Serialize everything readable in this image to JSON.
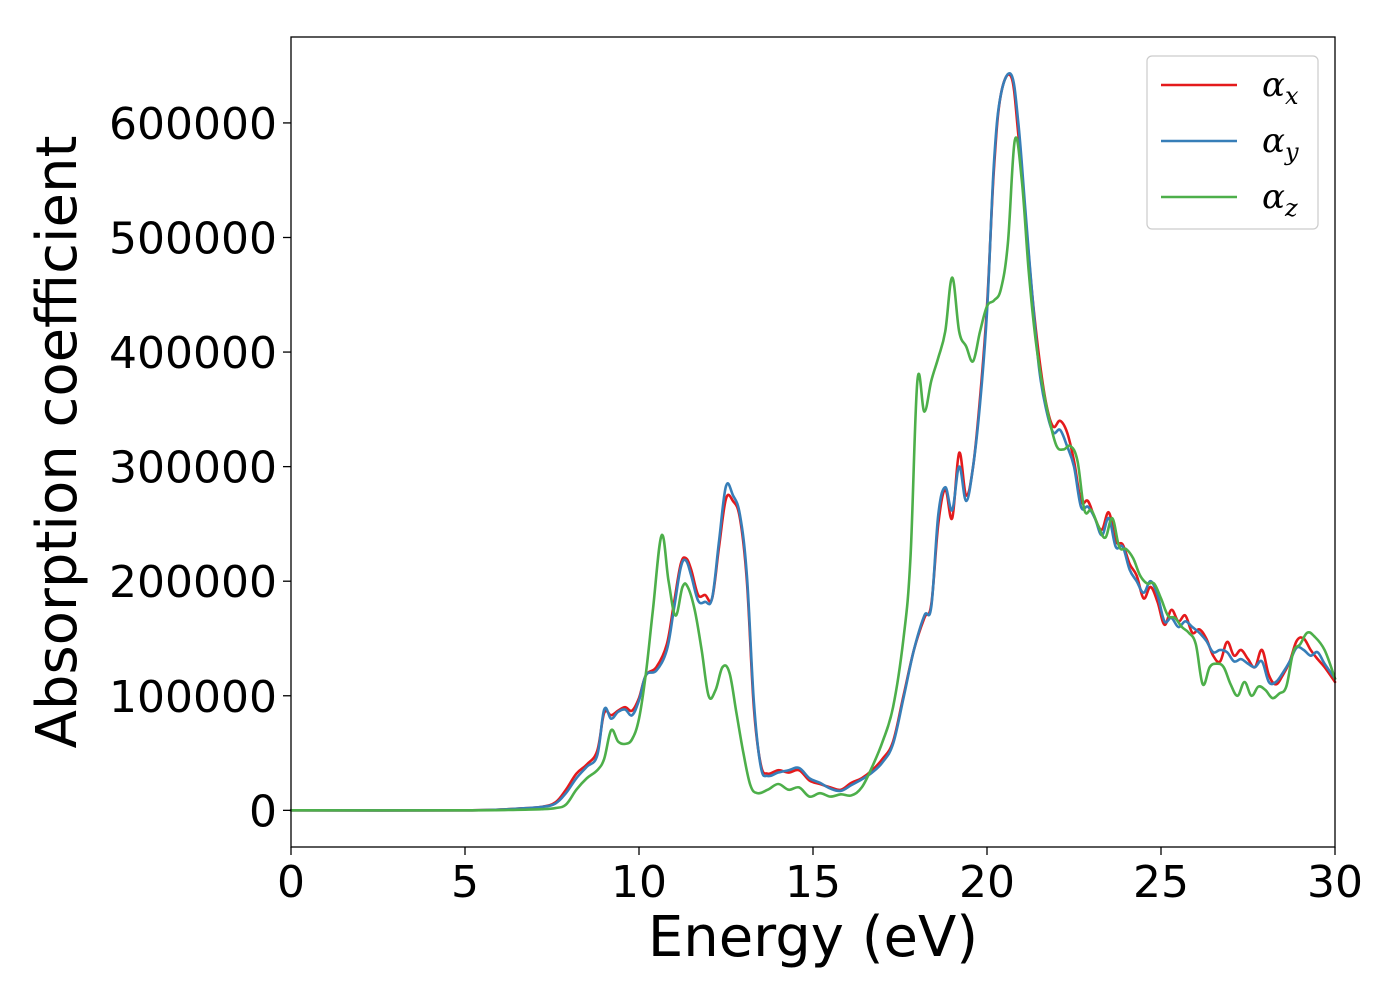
{
  "chart_data": {
    "type": "line",
    "title": "",
    "xlabel": "Energy (eV)",
    "ylabel": "Absorption coefficient",
    "xlim": [
      0,
      30
    ],
    "ylim": [
      -32000,
      675000
    ],
    "xticks": [
      0,
      5,
      10,
      15,
      20,
      25,
      30
    ],
    "yticks": [
      0,
      100000,
      200000,
      300000,
      400000,
      500000,
      600000
    ],
    "grid": false,
    "legend": {
      "placement": "top-right"
    },
    "series": [
      {
        "name": "α",
        "subscript": "x",
        "color": "#e41a1c",
        "x": [
          0,
          5,
          6.5,
          7.2,
          7.6,
          7.9,
          8.2,
          8.5,
          8.8,
          9.0,
          9.2,
          9.4,
          9.6,
          9.8,
          10.0,
          10.2,
          10.5,
          10.8,
          11.0,
          11.2,
          11.35,
          11.5,
          11.7,
          11.9,
          12.1,
          12.3,
          12.5,
          12.7,
          12.9,
          13.1,
          13.3,
          13.5,
          13.7,
          14.0,
          14.3,
          14.6,
          14.9,
          15.2,
          15.5,
          15.8,
          16.1,
          16.4,
          16.7,
          17.0,
          17.3,
          17.6,
          17.9,
          18.2,
          18.4,
          18.6,
          18.8,
          19.0,
          19.2,
          19.4,
          19.6,
          19.8,
          20.0,
          20.2,
          20.4,
          20.7,
          20.9,
          21.1,
          21.3,
          21.5,
          21.7,
          21.9,
          22.1,
          22.3,
          22.5,
          22.7,
          22.9,
          23.1,
          23.3,
          23.5,
          23.7,
          23.9,
          24.1,
          24.3,
          24.5,
          24.7,
          24.9,
          25.1,
          25.3,
          25.5,
          25.7,
          25.9,
          26.1,
          26.3,
          26.5,
          26.7,
          26.9,
          27.1,
          27.3,
          27.5,
          27.7,
          27.9,
          28.1,
          28.3,
          28.5,
          28.7,
          28.9,
          29.1,
          29.3,
          29.5,
          29.7,
          30.0
        ],
        "y": [
          0,
          0,
          1500,
          3000,
          7000,
          18000,
          32000,
          40000,
          52000,
          85000,
          83000,
          87000,
          90000,
          87000,
          98000,
          118000,
          125000,
          145000,
          180000,
          215000,
          220000,
          210000,
          188000,
          188000,
          185000,
          230000,
          272000,
          270000,
          255000,
          200000,
          90000,
          40000,
          32000,
          35000,
          33000,
          35000,
          26000,
          23000,
          20000,
          18000,
          24000,
          28000,
          35000,
          45000,
          60000,
          100000,
          140000,
          168000,
          180000,
          250000,
          280000,
          255000,
          312000,
          275000,
          300000,
          360000,
          440000,
          560000,
          625000,
          640000,
          590000,
          520000,
          450000,
          395000,
          355000,
          335000,
          340000,
          330000,
          305000,
          270000,
          270000,
          255000,
          245000,
          260000,
          235000,
          232000,
          215000,
          205000,
          185000,
          195000,
          182000,
          162000,
          175000,
          165000,
          170000,
          155000,
          158000,
          150000,
          135000,
          130000,
          147000,
          135000,
          140000,
          132000,
          125000,
          140000,
          118000,
          110000,
          118000,
          130000,
          148000,
          150000,
          140000,
          132000,
          125000,
          112000
        ]
      },
      {
        "name": "α",
        "subscript": "y",
        "color": "#377eb8",
        "x": [
          0,
          5,
          6.5,
          7.2,
          7.6,
          7.9,
          8.2,
          8.5,
          8.8,
          9.0,
          9.2,
          9.4,
          9.6,
          9.8,
          10.0,
          10.2,
          10.5,
          10.8,
          11.0,
          11.2,
          11.35,
          11.5,
          11.7,
          11.9,
          12.1,
          12.3,
          12.5,
          12.7,
          12.9,
          13.1,
          13.3,
          13.5,
          13.7,
          14.0,
          14.3,
          14.6,
          14.9,
          15.2,
          15.5,
          15.8,
          16.1,
          16.4,
          16.7,
          17.0,
          17.3,
          17.6,
          17.9,
          18.2,
          18.4,
          18.6,
          18.8,
          19.0,
          19.2,
          19.4,
          19.6,
          19.8,
          20.0,
          20.2,
          20.4,
          20.7,
          20.9,
          21.1,
          21.3,
          21.5,
          21.7,
          21.9,
          22.1,
          22.3,
          22.5,
          22.7,
          22.9,
          23.1,
          23.3,
          23.5,
          23.7,
          23.9,
          24.1,
          24.3,
          24.5,
          24.7,
          24.9,
          25.1,
          25.3,
          25.5,
          25.7,
          25.9,
          26.1,
          26.3,
          26.5,
          26.7,
          26.9,
          27.1,
          27.3,
          27.5,
          27.7,
          27.9,
          28.1,
          28.3,
          28.5,
          28.7,
          28.9,
          29.1,
          29.3,
          29.5,
          29.7,
          30.0
        ],
        "y": [
          0,
          0,
          1500,
          3000,
          6000,
          15000,
          28000,
          38000,
          48000,
          88000,
          80000,
          86000,
          88000,
          83000,
          96000,
          118000,
          122000,
          140000,
          175000,
          212000,
          218000,
          205000,
          183000,
          182000,
          185000,
          235000,
          283000,
          275000,
          258000,
          205000,
          95000,
          38000,
          30000,
          33000,
          35000,
          37000,
          28000,
          24000,
          19000,
          17000,
          22000,
          27000,
          33000,
          42000,
          58000,
          98000,
          140000,
          170000,
          178000,
          258000,
          282000,
          262000,
          300000,
          270000,
          300000,
          355000,
          435000,
          565000,
          625000,
          642000,
          600000,
          525000,
          450000,
          385000,
          350000,
          330000,
          332000,
          318000,
          300000,
          265000,
          265000,
          255000,
          240000,
          255000,
          230000,
          230000,
          210000,
          200000,
          190000,
          200000,
          188000,
          165000,
          168000,
          160000,
          165000,
          160000,
          155000,
          148000,
          138000,
          140000,
          138000,
          130000,
          132000,
          128000,
          125000,
          130000,
          112000,
          112000,
          120000,
          130000,
          142000,
          140000,
          135000,
          138000,
          128000,
          115000
        ]
      },
      {
        "name": "α",
        "subscript": "z",
        "color": "#4daf4a",
        "x": [
          0,
          5,
          6.5,
          7.2,
          7.6,
          7.9,
          8.2,
          8.5,
          8.8,
          9.0,
          9.2,
          9.4,
          9.6,
          9.8,
          10.0,
          10.2,
          10.4,
          10.65,
          10.85,
          11.05,
          11.25,
          11.4,
          11.6,
          11.8,
          12.0,
          12.2,
          12.4,
          12.6,
          12.8,
          13.0,
          13.2,
          13.4,
          13.7,
          14.0,
          14.3,
          14.6,
          14.9,
          15.2,
          15.5,
          15.8,
          16.1,
          16.4,
          16.7,
          17.0,
          17.3,
          17.6,
          17.8,
          18.0,
          18.2,
          18.4,
          18.6,
          18.8,
          19.0,
          19.2,
          19.4,
          19.6,
          19.8,
          20.0,
          20.2,
          20.4,
          20.6,
          20.8,
          21.0,
          21.2,
          21.4,
          21.6,
          21.8,
          22.0,
          22.2,
          22.4,
          22.6,
          22.8,
          23.0,
          23.2,
          23.4,
          23.6,
          23.8,
          24.0,
          24.2,
          24.4,
          24.6,
          24.8,
          25.0,
          25.2,
          25.4,
          25.6,
          25.8,
          26.0,
          26.2,
          26.4,
          26.6,
          26.8,
          27.0,
          27.2,
          27.4,
          27.6,
          27.8,
          28.0,
          28.2,
          28.4,
          28.6,
          28.8,
          29.0,
          29.2,
          29.4,
          29.7,
          30.0
        ],
        "y": [
          0,
          0,
          500,
          1000,
          2000,
          5000,
          18000,
          28000,
          35000,
          45000,
          70000,
          60000,
          58000,
          62000,
          80000,
          120000,
          175000,
          240000,
          200000,
          170000,
          195000,
          195000,
          175000,
          140000,
          100000,
          105000,
          125000,
          120000,
          85000,
          50000,
          22000,
          15000,
          18000,
          23000,
          18000,
          20000,
          12000,
          15000,
          12000,
          14000,
          13000,
          20000,
          38000,
          60000,
          90000,
          150000,
          220000,
          375000,
          348000,
          375000,
          395000,
          418000,
          465000,
          418000,
          405000,
          392000,
          418000,
          440000,
          445000,
          455000,
          495000,
          585000,
          550000,
          470000,
          410000,
          370000,
          340000,
          318000,
          315000,
          318000,
          305000,
          262000,
          262000,
          248000,
          238000,
          255000,
          230000,
          228000,
          220000,
          205000,
          198000,
          198000,
          185000,
          170000,
          168000,
          160000,
          155000,
          145000,
          110000,
          125000,
          128000,
          125000,
          110000,
          100000,
          112000,
          100000,
          108000,
          105000,
          98000,
          102000,
          108000,
          138000,
          145000,
          155000,
          152000,
          140000,
          115000
        ]
      }
    ]
  }
}
